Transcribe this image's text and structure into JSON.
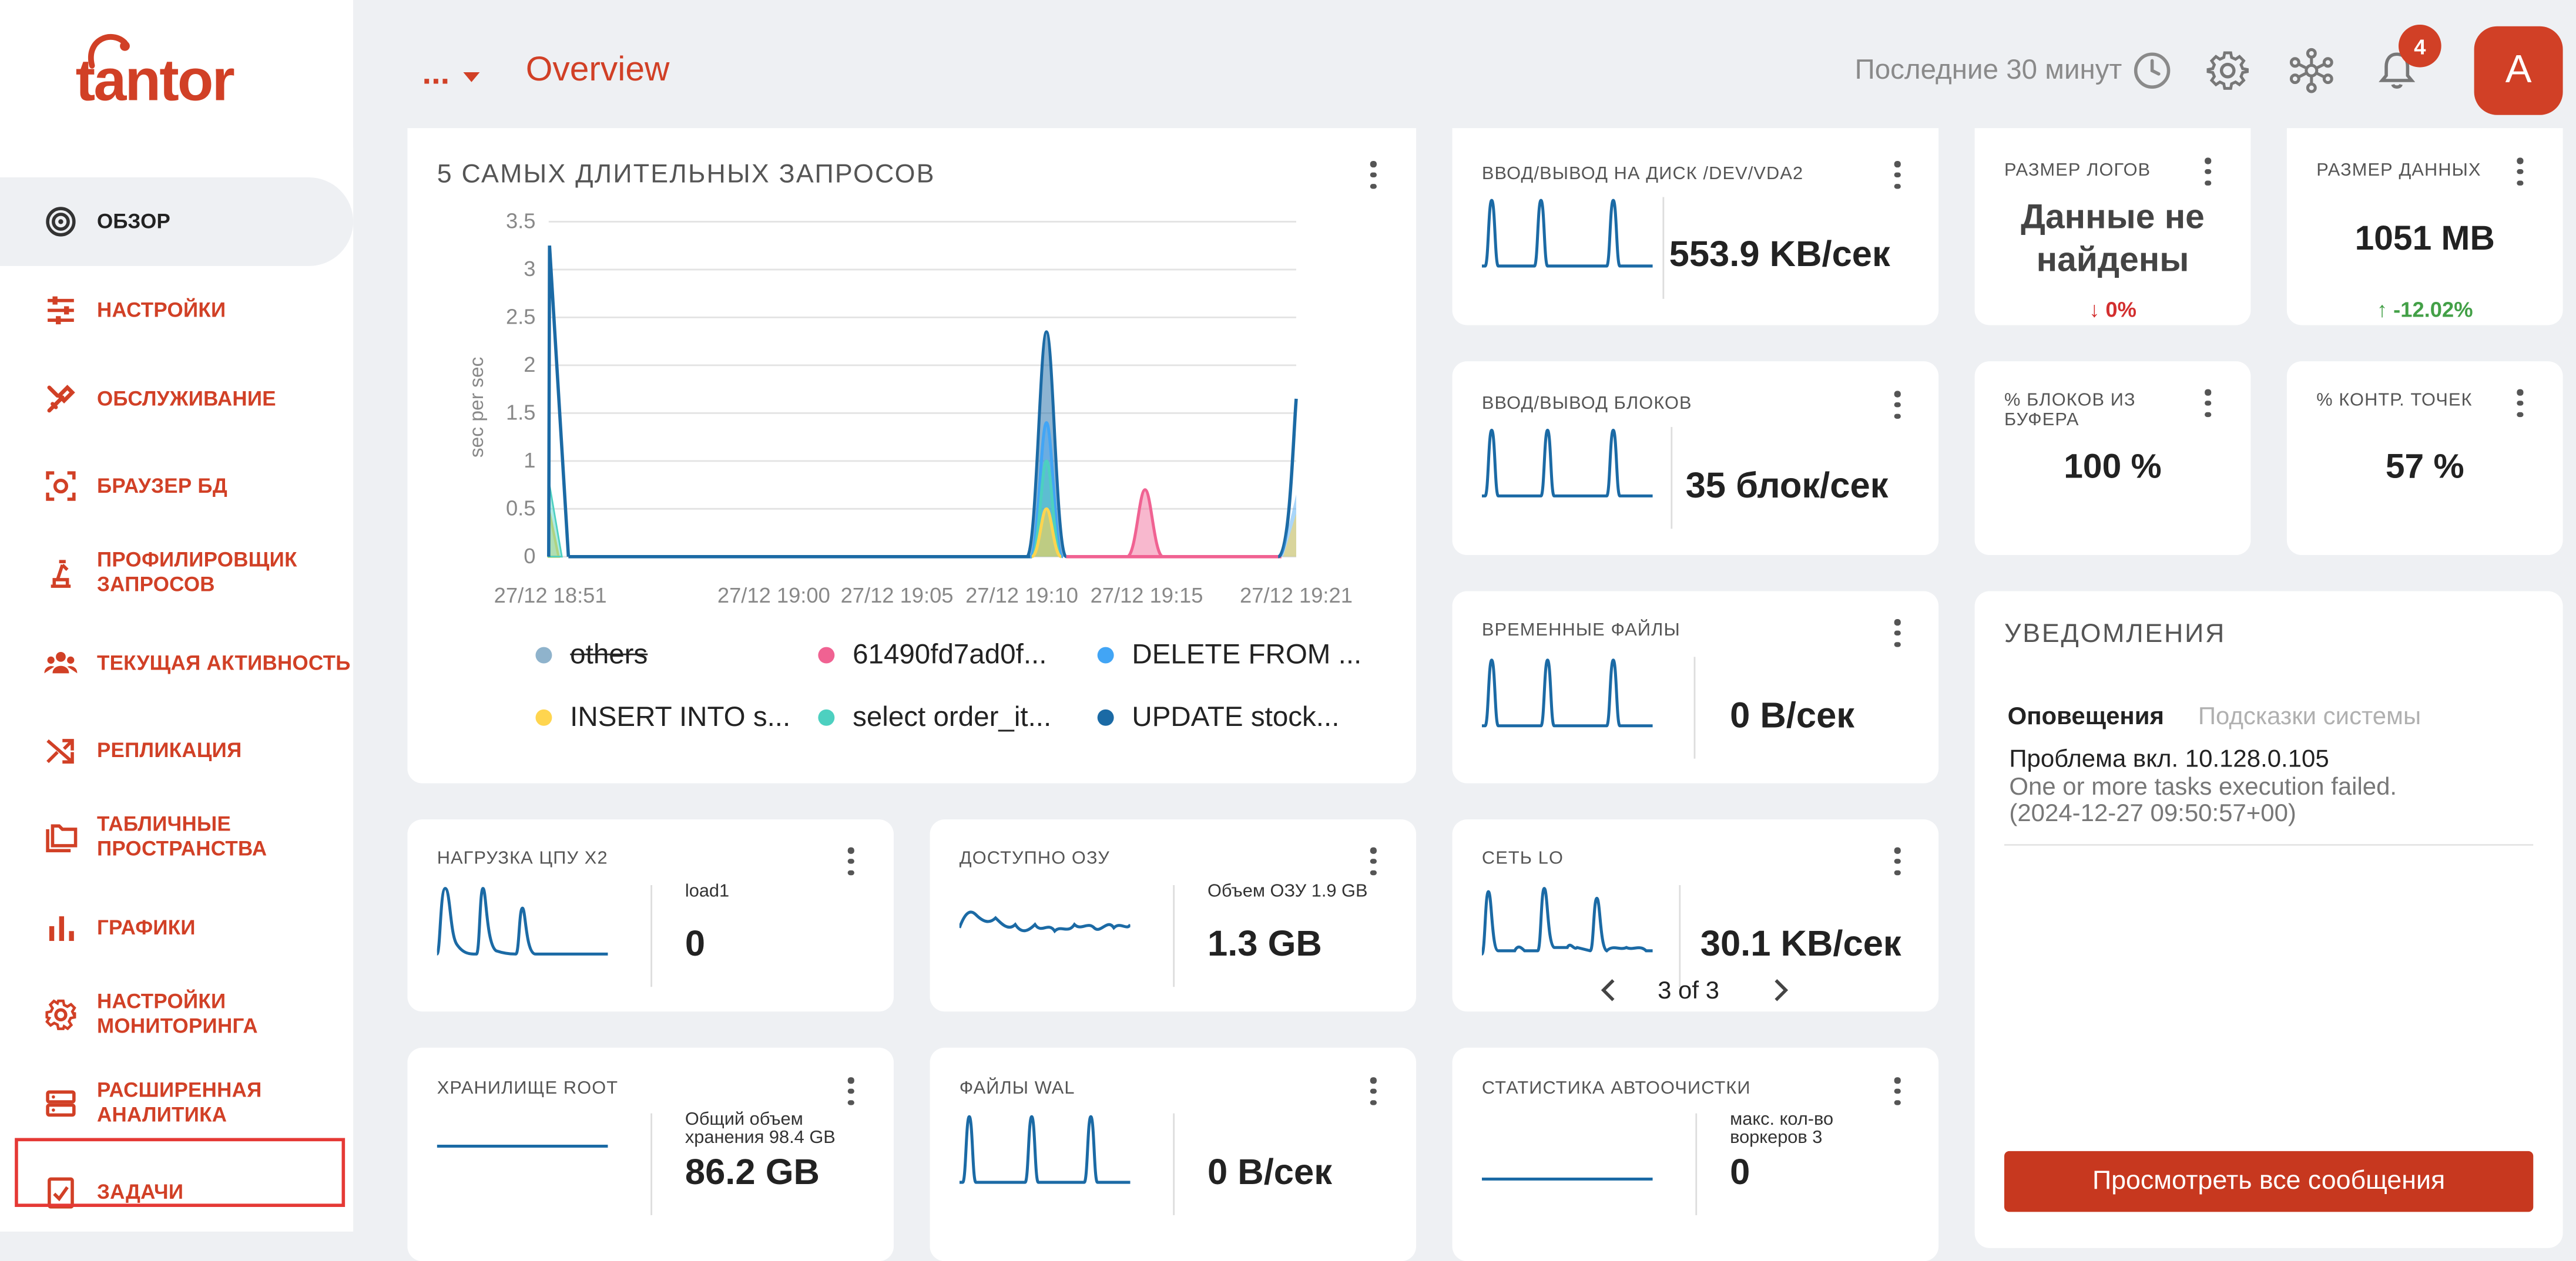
{
  "app": {
    "logo_text": "tantor",
    "breadcrumb_ellipsis": "...",
    "page_title": "Overview",
    "time_range": "Последние 30 минут",
    "notification_count": "4",
    "avatar_letter": "A"
  },
  "colors": {
    "brand": "#d14026",
    "primary_line": "#1b6aa5"
  },
  "sidebar": {
    "items": [
      {
        "label": "ОБЗОР",
        "icon": "target-icon",
        "active": true
      },
      {
        "label": "НАСТРОЙКИ",
        "icon": "sliders-icon"
      },
      {
        "label": "ОБСЛУЖИВАНИЕ",
        "icon": "tools-icon"
      },
      {
        "label": "БРАУЗЕР БД",
        "icon": "db-browser-icon"
      },
      {
        "label": "ПРОФИЛИРОВЩИК\nЗАПРОСОВ",
        "icon": "profiler-icon"
      },
      {
        "label": "ТЕКУЩАЯ АКТИВНОСТЬ",
        "icon": "users-icon"
      },
      {
        "label": "РЕПЛИКАЦИЯ",
        "icon": "shuffle-icon"
      },
      {
        "label": "ТАБЛИЧНЫЕ\nПРОСТРАНСТВА",
        "icon": "folders-icon"
      },
      {
        "label": "ГРАФИКИ",
        "icon": "bar-chart-icon"
      },
      {
        "label": "НАСТРОЙКИ\nМОНИТОРИНГА",
        "icon": "gear-icon"
      },
      {
        "label": "РАСШИРЕННАЯ\nАНАЛИТИКА",
        "icon": "server-icon"
      },
      {
        "label": "ЗАДАЧИ",
        "icon": "task-check-icon",
        "highlighted": true
      }
    ]
  },
  "top_queries": {
    "title": "5 САМЫХ ДЛИТЕЛЬНЫХ ЗАПРОСОВ",
    "legend": [
      {
        "label": "others",
        "color": "#8fb3cc",
        "struck": true
      },
      {
        "label": "61490fd7ad0f...",
        "color": "#f06292"
      },
      {
        "label": "DELETE FROM ...",
        "color": "#42a5f5"
      },
      {
        "label": "INSERT INTO s...",
        "color": "#ffd54f"
      },
      {
        "label": "select order_it...",
        "color": "#4dd0c0"
      },
      {
        "label": "UPDATE stock...",
        "color": "#1b6aa5"
      }
    ]
  },
  "chart_data": {
    "type": "area",
    "title": "5 САМЫХ ДЛИТЕЛЬНЫХ ЗАПРОСОВ",
    "ylabel": "sec per sec",
    "ylim": [
      0,
      3.5
    ],
    "y_ticks": [
      "3.5",
      "3",
      "2.5",
      "2",
      "1.5",
      "1",
      "0.5",
      "0"
    ],
    "x_ticks": [
      "27/12 18:51",
      "27/12 19:00",
      "27/12 19:05",
      "27/12 19:10",
      "27/12 19:15",
      "27/12 19:21"
    ],
    "grid": true,
    "legend_position": "bottom",
    "series": [
      {
        "name": "UPDATE stock...",
        "points": [
          [
            "18:51",
            0.0
          ],
          [
            "18:51.3",
            3.25
          ],
          [
            "18:52",
            0.0
          ],
          [
            "19:10",
            0.0
          ],
          [
            "19:10.5",
            2.35
          ],
          [
            "19:11",
            0.0
          ],
          [
            "19:21",
            1.65
          ]
        ]
      },
      {
        "name": "DELETE FROM ...",
        "points": [
          [
            "19:10",
            0.0
          ],
          [
            "19:10.5",
            1.4
          ],
          [
            "19:11",
            0.0
          ],
          [
            "19:21",
            0.65
          ]
        ]
      },
      {
        "name": "select order_it...",
        "points": [
          [
            "18:51",
            0.0
          ],
          [
            "18:51.3",
            0.8
          ],
          [
            "18:52",
            0.0
          ],
          [
            "19:10.5",
            1.0
          ],
          [
            "19:11",
            0.0
          ],
          [
            "19:21",
            0.45
          ]
        ]
      },
      {
        "name": "INSERT INTO s...",
        "points": [
          [
            "18:51",
            0.5
          ],
          [
            "18:52",
            0.0
          ],
          [
            "19:10.5",
            0.5
          ],
          [
            "19:11",
            0.0
          ],
          [
            "19:21",
            0.4
          ]
        ]
      },
      {
        "name": "61490fd7ad0f...",
        "points": [
          [
            "19:13",
            0.0
          ],
          [
            "19:13.7",
            0.7
          ],
          [
            "19:14.4",
            0.0
          ]
        ]
      }
    ]
  },
  "cards": {
    "disk_io": {
      "title": "ВВОД/ВЫВОД НА ДИСК /DEV/VDA2",
      "value": "553.9 KB/сек"
    },
    "block_io": {
      "title": "ВВОД/ВЫВОД БЛОКОВ",
      "value": "35 блок/сек"
    },
    "temp_files": {
      "title": "ВРЕМЕННЫЕ ФАЙЛЫ",
      "value": "0 B/сек"
    },
    "network": {
      "title": "СЕТЬ LO",
      "value": "30.1 KB/сек",
      "pager": "3 of 3"
    },
    "autovacuum": {
      "title": "СТАТИСТИКА АВТООЧИСТКИ",
      "label": "макс. кол-во воркеров 3",
      "value": "0"
    },
    "logs_size": {
      "title": "РАЗМЕР ЛОГОВ",
      "value": "Данные не найдены",
      "delta": "↓ 0%",
      "delta_color": "#d32f2f"
    },
    "data_size": {
      "title": "РАЗМЕР ДАННЫХ",
      "value": "1051 MB",
      "delta": "↑ -12.02%",
      "delta_color": "#43a047"
    },
    "buffer_hit": {
      "title": "% БЛОКОВ ИЗ БУФЕРА",
      "value": "100 %"
    },
    "checkpoints": {
      "title": "% КОНТР. ТОЧЕК",
      "value": "57 %"
    },
    "cpu": {
      "title": "НАГРУЗКА ЦПУ X2",
      "label": "load1",
      "value": "0"
    },
    "ram": {
      "title": "ДОСТУПНО ОЗУ",
      "label": "Объем ОЗУ 1.9 GB",
      "value": "1.3 GB"
    },
    "storage": {
      "title": "ХРАНИЛИЩЕ ROOT",
      "label": "Общий объем хранения 98.4 GB",
      "value": "86.2 GB"
    },
    "wal": {
      "title": "ФАЙЛЫ WAL",
      "value": "0 B/сек"
    }
  },
  "notifications": {
    "title": "УВЕДОМЛЕНИЯ",
    "tabs": [
      "Оповещения",
      "Подсказки системы"
    ],
    "items": [
      {
        "title": "Проблема вкл. 10.128.0.105",
        "body": "One or more tasks execution failed.",
        "time": "(2024-12-27 09:50:57+00)"
      }
    ],
    "button": "Просмотреть все сообщения"
  }
}
